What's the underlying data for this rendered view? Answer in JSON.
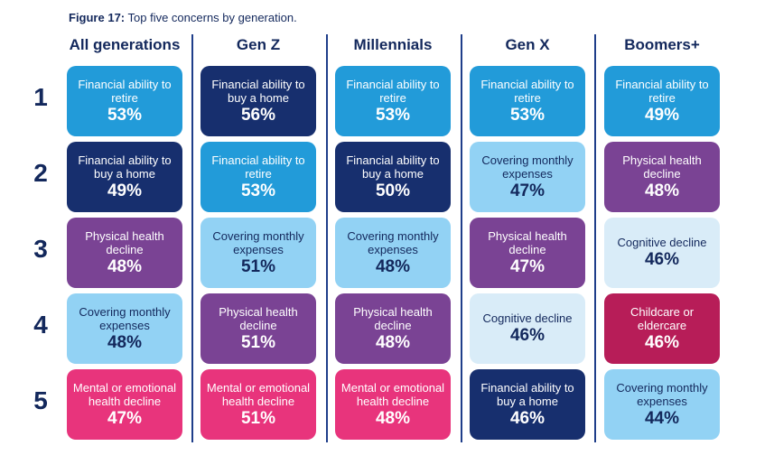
{
  "figure": {
    "label": "Figure 17:",
    "caption": "Top five concerns by generation."
  },
  "chart_data": {
    "type": "table",
    "columns": [
      "All generations",
      "Gen Z",
      "Millennials",
      "Gen X",
      "Boomers+"
    ],
    "ranks": [
      "1",
      "2",
      "3",
      "4",
      "5"
    ],
    "cells": [
      [
        {
          "label": "Financial ability to retire",
          "value": "53%",
          "tone": "mid"
        },
        {
          "label": "Financial ability to buy a home",
          "value": "56%",
          "tone": "navy"
        },
        {
          "label": "Financial ability to retire",
          "value": "53%",
          "tone": "mid"
        },
        {
          "label": "Financial ability to retire",
          "value": "53%",
          "tone": "mid"
        },
        {
          "label": "Financial ability to retire",
          "value": "49%",
          "tone": "mid"
        }
      ],
      [
        {
          "label": "Financial ability to buy a home",
          "value": "49%",
          "tone": "navy"
        },
        {
          "label": "Financial ability to retire",
          "value": "53%",
          "tone": "mid"
        },
        {
          "label": "Financial ability to buy a home",
          "value": "50%",
          "tone": "navy"
        },
        {
          "label": "Covering monthly expenses",
          "value": "47%",
          "tone": "light"
        },
        {
          "label": "Physical health decline",
          "value": "48%",
          "tone": "purple"
        }
      ],
      [
        {
          "label": "Physical health decline",
          "value": "48%",
          "tone": "purple"
        },
        {
          "label": "Covering monthly expenses",
          "value": "51%",
          "tone": "light"
        },
        {
          "label": "Covering monthly expenses",
          "value": "48%",
          "tone": "light"
        },
        {
          "label": "Physical health decline",
          "value": "47%",
          "tone": "purple"
        },
        {
          "label": "Cognitive decline",
          "value": "46%",
          "tone": "pale"
        }
      ],
      [
        {
          "label": "Covering monthly expenses",
          "value": "48%",
          "tone": "light"
        },
        {
          "label": "Physical health decline",
          "value": "51%",
          "tone": "purple"
        },
        {
          "label": "Physical health decline",
          "value": "48%",
          "tone": "purple"
        },
        {
          "label": "Cognitive decline",
          "value": "46%",
          "tone": "pale"
        },
        {
          "label": "Childcare or eldercare",
          "value": "46%",
          "tone": "crimson"
        }
      ],
      [
        {
          "label": "Mental or emotional health decline",
          "value": "47%",
          "tone": "pink"
        },
        {
          "label": "Mental or emotional health decline",
          "value": "51%",
          "tone": "pink"
        },
        {
          "label": "Mental or emotional health decline",
          "value": "48%",
          "tone": "pink"
        },
        {
          "label": "Financial ability to buy a home",
          "value": "46%",
          "tone": "navy"
        },
        {
          "label": "Covering monthly expenses",
          "value": "44%",
          "tone": "light"
        }
      ]
    ]
  },
  "colors": {
    "text_dark": "#13285c",
    "divider": "#1f3e8a",
    "mid": "#229bd9",
    "navy": "#172f6e",
    "light": "#92d2f4",
    "pale": "#d9ecf8",
    "purple": "#7a4394",
    "pink": "#e8347c",
    "crimson": "#b71d58"
  }
}
